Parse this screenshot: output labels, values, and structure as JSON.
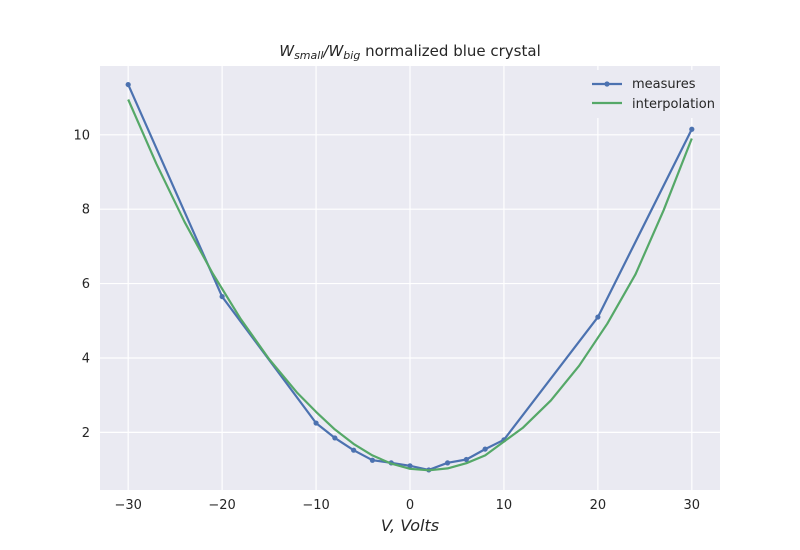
{
  "chart_data": {
    "type": "line",
    "title_main": "W",
    "title_sub1": "small",
    "title_sep": "/W",
    "title_sub2": "big",
    "title_rest": " normalized blue crystal",
    "xlabel": "V, Volts",
    "ylabel": "",
    "xlim": [
      -33,
      33
    ],
    "ylim": [
      0.45,
      11.85
    ],
    "x_ticks": [
      -30,
      -20,
      -10,
      0,
      10,
      20,
      30
    ],
    "x_tick_labels": [
      "−30",
      "−20",
      "−10",
      "0",
      "10",
      "20",
      "30"
    ],
    "y_ticks": [
      2,
      4,
      6,
      8,
      10
    ],
    "y_tick_labels": [
      "2",
      "4",
      "6",
      "8",
      "10"
    ],
    "grid": true,
    "legend_position": "top-right",
    "background_color": "#eaeaf2",
    "series": [
      {
        "name": "measures",
        "color": "#4c72b0",
        "marker": "dot",
        "x": [
          -30,
          -20,
          -10,
          -8,
          -6,
          -4,
          -2,
          0,
          2,
          4,
          6,
          8,
          10,
          20,
          30
        ],
        "y": [
          11.35,
          5.65,
          2.25,
          1.85,
          1.52,
          1.25,
          1.18,
          1.1,
          0.99,
          1.18,
          1.27,
          1.55,
          1.8,
          5.1,
          10.15
        ]
      },
      {
        "name": "interpolation",
        "color": "#55a868",
        "marker": "none",
        "x": [
          -30,
          -27,
          -24,
          -21,
          -18,
          -15,
          -12,
          -10,
          -8,
          -6,
          -4,
          -2,
          0,
          2,
          4,
          6,
          8,
          10,
          12,
          15,
          18,
          21,
          24,
          27,
          30
        ],
        "y": [
          10.95,
          9.22,
          7.66,
          6.27,
          5.04,
          3.97,
          3.06,
          2.55,
          2.08,
          1.69,
          1.38,
          1.16,
          1.02,
          0.98,
          1.03,
          1.17,
          1.38,
          1.75,
          2.12,
          2.86,
          3.79,
          4.92,
          6.25,
          7.97,
          9.9
        ]
      }
    ]
  }
}
